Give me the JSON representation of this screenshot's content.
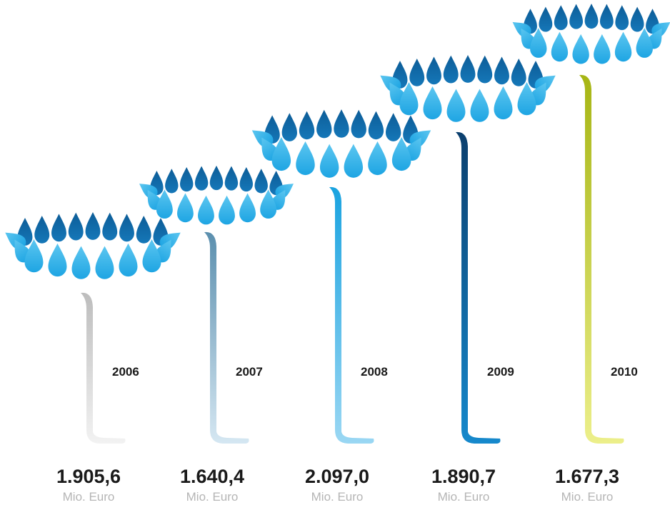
{
  "items": [
    {
      "year": "2006",
      "value": "1.905,6",
      "unit": "Mio. Euro"
    },
    {
      "year": "2007",
      "value": "1.640,4",
      "unit": "Mio. Euro"
    },
    {
      "year": "2008",
      "value": "2.097,0",
      "unit": "Mio. Euro"
    },
    {
      "year": "2009",
      "value": "1.890,7",
      "unit": "Mio. Euro"
    },
    {
      "year": "2010",
      "value": "1.677,3",
      "unit": "Mio. Euro"
    }
  ]
}
